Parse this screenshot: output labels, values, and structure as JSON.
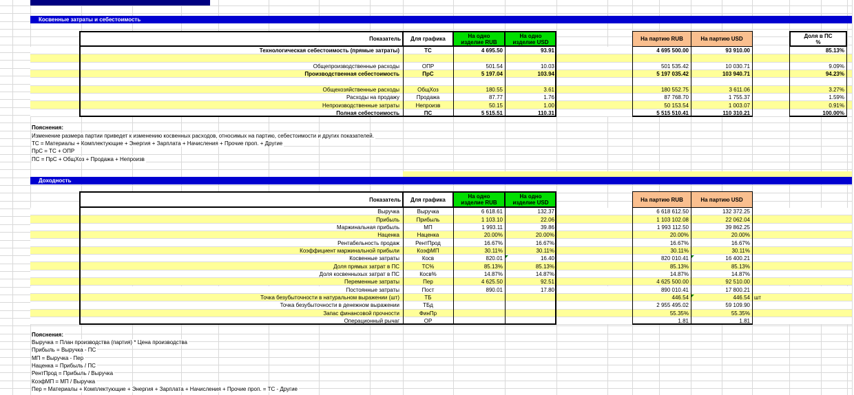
{
  "colors": {
    "navy_bar": "#000080",
    "section_bar": "#0000D0",
    "green_header": "#00DE00",
    "orange_header": "#FABF8F",
    "row_yellow": "#FFFF99"
  },
  "header_labels": {
    "indicator": "Показатель",
    "graph": "Для графика",
    "unit_rub_l1": "На одно",
    "unit_rub_l2": "изделие RUB",
    "unit_usd_l1": "На одно",
    "unit_usd_l2": "изделие USD",
    "batch_rub": "На партию RUB",
    "batch_usd": "На партию USD",
    "share_l1": "Доля в ПС",
    "share_l2": "%"
  },
  "section1": {
    "title": "Косвенные затраты и себестоимость",
    "rows": [
      {
        "label": "Технологическая себестоимость (прямые затраты)",
        "code": "ТС",
        "unit_rub": "4 695.50",
        "unit_usd": "93.91",
        "batch_rub": "4 695 500.00",
        "batch_usd": "93 910.00",
        "share": "85.13%",
        "bold": true,
        "fill": "white"
      },
      {
        "label": "",
        "code": "",
        "unit_rub": "",
        "unit_usd": "",
        "batch_rub": "",
        "batch_usd": "",
        "share": "",
        "bold": false,
        "fill": "yellow"
      },
      {
        "label": "Общепроизводственные расходы",
        "code": "ОПР",
        "unit_rub": "501.54",
        "unit_usd": "10.03",
        "batch_rub": "501 535.42",
        "batch_usd": "10 030.71",
        "share": "9.09%",
        "bold": false,
        "fill": "white"
      },
      {
        "label": "Производственная себестоимость",
        "code": "ПрС",
        "unit_rub": "5 197.04",
        "unit_usd": "103.94",
        "batch_rub": "5 197 035.42",
        "batch_usd": "103 940.71",
        "share": "94.23%",
        "bold": true,
        "fill": "yellow"
      },
      {
        "label": "",
        "code": "",
        "unit_rub": "",
        "unit_usd": "",
        "batch_rub": "",
        "batch_usd": "",
        "share": "",
        "bold": false,
        "fill": "white"
      },
      {
        "label": "Общехозяйственные расходы",
        "code": "ОбщХоз",
        "unit_rub": "180.55",
        "unit_usd": "3.61",
        "batch_rub": "180 552.75",
        "batch_usd": "3 611.06",
        "share": "3.27%",
        "bold": false,
        "fill": "yellow"
      },
      {
        "label": "Расходы на продажу",
        "code": "Продажа",
        "unit_rub": "87.77",
        "unit_usd": "1.76",
        "batch_rub": "87 768.70",
        "batch_usd": "1 755.37",
        "share": "1.59%",
        "bold": false,
        "fill": "white"
      },
      {
        "label": "Непроизводственные затраты",
        "code": "Непроизв",
        "unit_rub": "50.15",
        "unit_usd": "1.00",
        "batch_rub": "50 153.54",
        "batch_usd": "1 003.07",
        "share": "0.91%",
        "bold": false,
        "fill": "yellow"
      },
      {
        "label": "Полная себестоимость",
        "code": "ПС",
        "unit_rub": "5 515.51",
        "unit_usd": "110.31",
        "batch_rub": "5 515 510.41",
        "batch_usd": "110 310.21",
        "share": "100.00%",
        "bold": true,
        "fill": "white"
      }
    ],
    "notes": {
      "title": "Пояснения:",
      "lines": [
        "Изменение размера партии приведет к изменению косвенных расходов, относимых на партию, себестоимости и других показателей.",
        "ТС  =  Материалы + Комплектующие + Энергия + Зарплата + Начисления + Прочие проп. + Другие",
        "ПрС = ТС + ОПР",
        "ПС = ПрС + ОбщХоз + Продажа + Непроизв"
      ]
    }
  },
  "section2": {
    "title": "Доходность",
    "rows": [
      {
        "label": "Выручка",
        "code": "Выручка",
        "unit_rub": "6 618.61",
        "unit_usd": "132.37",
        "batch_rub": "6 618 612.50",
        "batch_usd": "132 372.25",
        "bold": false,
        "fill": "white"
      },
      {
        "label": "Прибыль",
        "code": "Прибыль",
        "unit_rub": "1 103.10",
        "unit_usd": "22.06",
        "batch_rub": "1 103 102.08",
        "batch_usd": "22 062.04",
        "bold": false,
        "fill": "yellow"
      },
      {
        "label": "Маржинальная прибыль",
        "code": "МП",
        "unit_rub": "1 993.11",
        "unit_usd": "39.86",
        "batch_rub": "1 993 112.50",
        "batch_usd": "39 862.25",
        "bold": false,
        "fill": "white"
      },
      {
        "label": "Наценка",
        "code": "Наценка",
        "unit_rub": "20.00%",
        "unit_usd": "20.00%",
        "batch_rub": "20.00%",
        "batch_usd": "20.00%",
        "bold": false,
        "fill": "yellow"
      },
      {
        "label": "Рентабельность продаж",
        "code": "РентПрод",
        "unit_rub": "16.67%",
        "unit_usd": "16.67%",
        "batch_rub": "16.67%",
        "batch_usd": "16.67%",
        "bold": false,
        "fill": "white"
      },
      {
        "label": "Коэффициент маржинальной прибыли",
        "code": "КоэфМП",
        "unit_rub": "30.11%",
        "unit_usd": "30.11%",
        "batch_rub": "30.11%",
        "batch_usd": "30.11%",
        "bold": false,
        "fill": "yellow"
      },
      {
        "label": "Косвенные затраты",
        "code": "Косв",
        "unit_rub": "820.01",
        "unit_usd": "16.40",
        "batch_rub": "820 010.41",
        "batch_usd": "16 400.21",
        "bold": false,
        "fill": "white",
        "flag_unit_usd": true,
        "flag_batch_usd": true
      },
      {
        "label": "Доля прямых затрат в ПС",
        "code": "ТС%",
        "unit_rub": "85.13%",
        "unit_usd": "85.13%",
        "batch_rub": "85.13%",
        "batch_usd": "85.13%",
        "bold": false,
        "fill": "yellow"
      },
      {
        "label": "Доля косвенныхых затрат в ПС",
        "code": "Косв%",
        "unit_rub": "14.87%",
        "unit_usd": "14.87%",
        "batch_rub": "14.87%",
        "batch_usd": "14.87%",
        "bold": false,
        "fill": "white"
      },
      {
        "label": "Переменные затраты",
        "code": "Пер",
        "unit_rub": "4 625.50",
        "unit_usd": "92.51",
        "batch_rub": "4 625 500.00",
        "batch_usd": "92 510.00",
        "bold": false,
        "fill": "yellow"
      },
      {
        "label": "Постоянные затраты",
        "code": "Пост",
        "unit_rub": "890.01",
        "unit_usd": "17.80",
        "batch_rub": "890 010.41",
        "batch_usd": "17 800.21",
        "bold": false,
        "fill": "white"
      },
      {
        "label": "Точка безубыточности в натуральном выражении (шт)",
        "code": "ТБ",
        "unit_rub": "",
        "unit_usd": "",
        "batch_rub": "446.54",
        "batch_usd": "446.54",
        "unit_suffix": "шт",
        "bold": false,
        "fill": "yellow",
        "flag_batch_usd": true
      },
      {
        "label": "Точка безубыточности в денежном выражении",
        "code": "ТБд",
        "unit_rub": "",
        "unit_usd": "",
        "batch_rub": "2 955 495.02",
        "batch_usd": "59 109.90",
        "bold": false,
        "fill": "white"
      },
      {
        "label": "Запас финансовой прочности",
        "code": "ФинПр",
        "unit_rub": "",
        "unit_usd": "",
        "batch_rub": "55.35%",
        "batch_usd": "55.35%",
        "bold": false,
        "fill": "yellow"
      },
      {
        "label": "Операционный рычаг",
        "code": "ОР",
        "unit_rub": "",
        "unit_usd": "",
        "batch_rub": "1.81",
        "batch_usd": "1.81",
        "bold": false,
        "fill": "white"
      }
    ],
    "notes": {
      "title": "Пояснения:",
      "lines": [
        "Выручка = План производства (партия) * Цена производства",
        "Прибыль = Выручка - ПС",
        "МП = Выручка - Пер",
        "Наценка = Прибыль / ПС",
        "РентПрод = Прибыль / Выручка",
        "КоэфМП = МП / Выручка",
        "Пер  =  Материалы + Комплектующие + Энергия + Зарплата + Начисления + Прочие проп. = ТС - Другие"
      ]
    }
  }
}
